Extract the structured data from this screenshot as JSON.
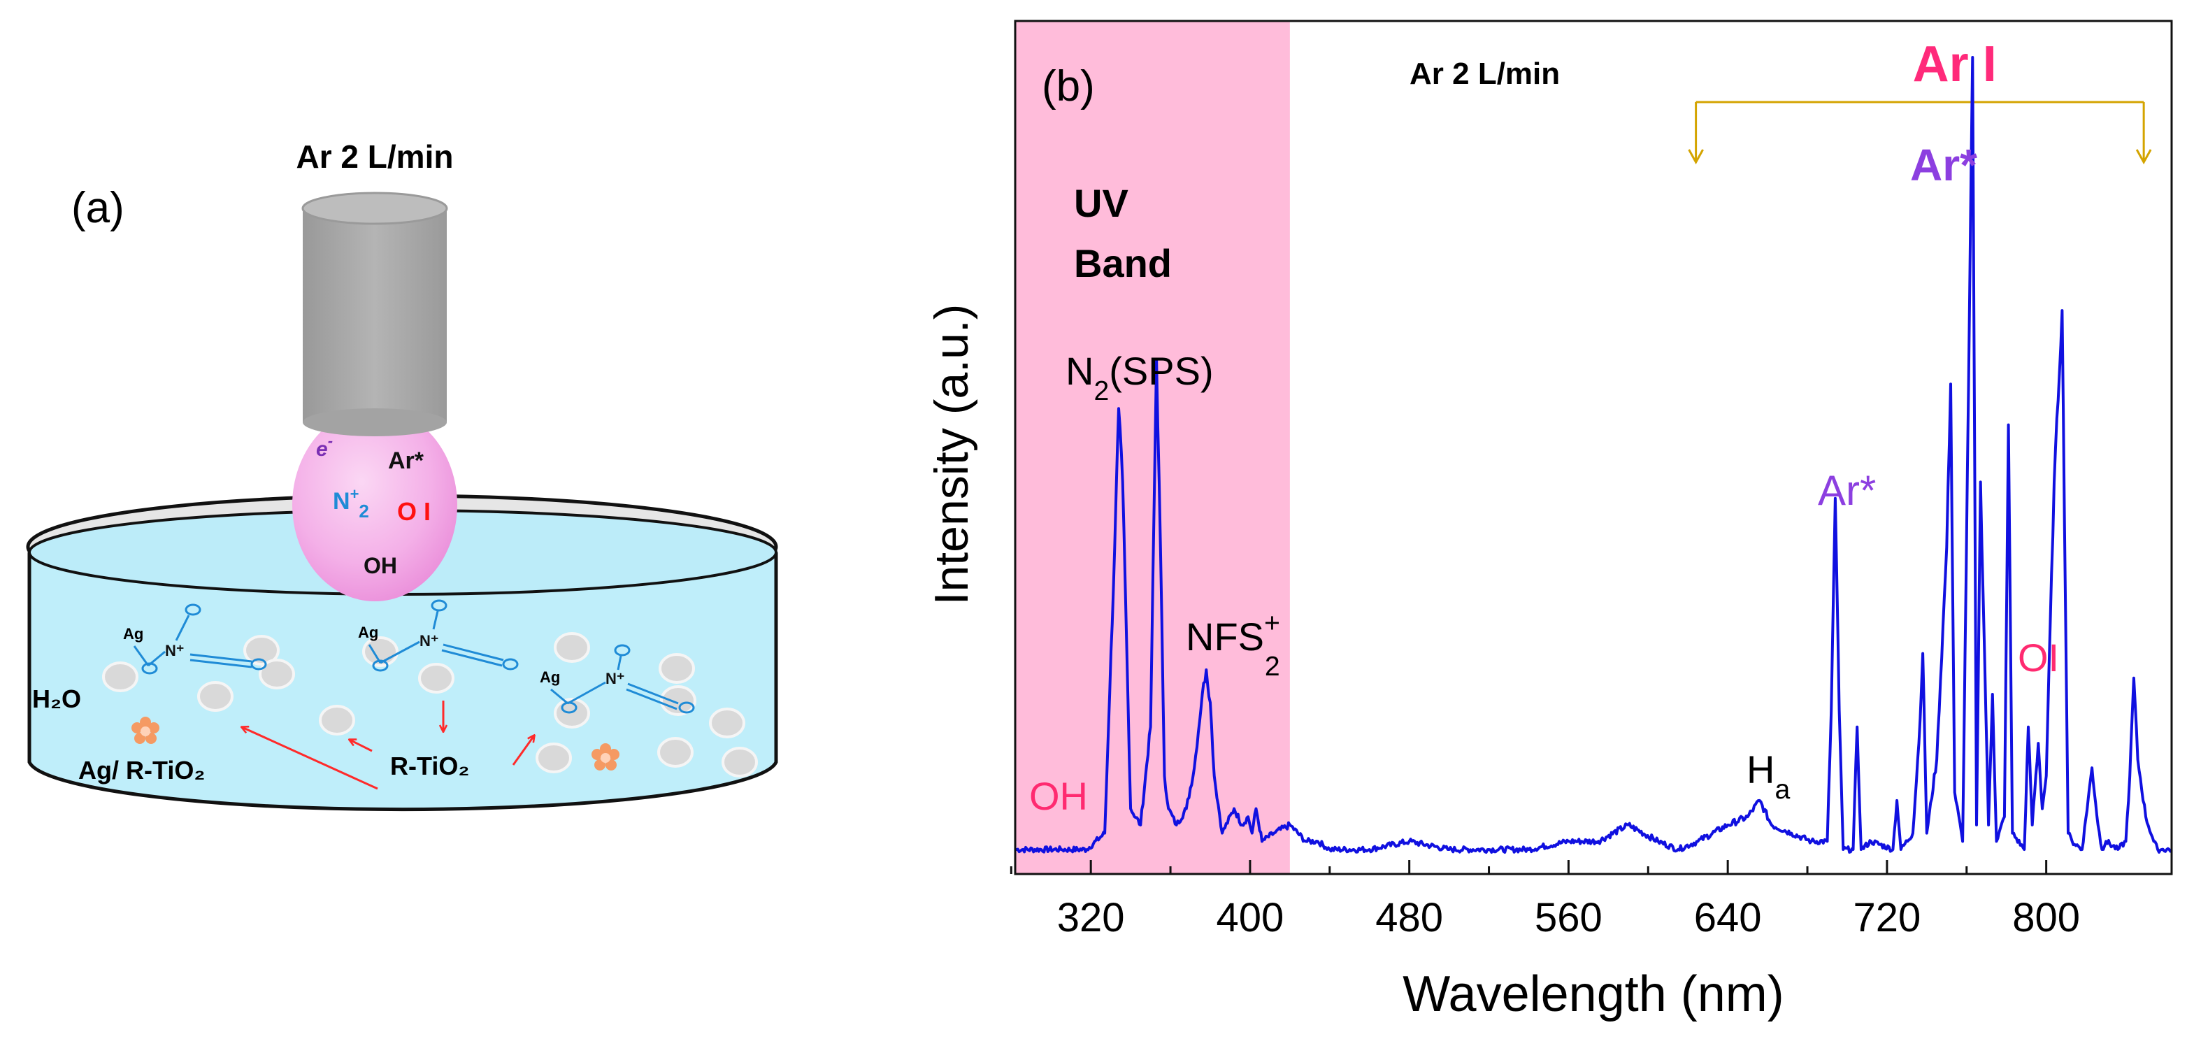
{
  "panel_a": {
    "label": "(a)",
    "gas_flow": "Ar 2 L/min",
    "species": {
      "electron_base": "e",
      "electron_sup": "-",
      "ar_star": "Ar*",
      "n2_base": "N",
      "n2_sup": "+",
      "n2_sub": "2",
      "oi": "O I",
      "oh": "OH"
    },
    "water": "H₂O",
    "ag_rtio2": "Ag/ R-TiO₂",
    "rtio2": "R-TiO₂",
    "ag_atom": "Ag",
    "n_plus": "N⁺",
    "o_atom": "o",
    "colors": {
      "nozzle": "#a6a6a6",
      "plume": "#f2a8e6",
      "liquid": "#bfeefa",
      "arrow": "#ff2a2a",
      "molecule": "#1f8bd6",
      "particle": "#d8d8d8",
      "ag_cluster": "#f59a63"
    }
  },
  "chart_data": {
    "type": "line",
    "panel_label": "(b)",
    "title": "Ar 2 L/min",
    "xlabel": "Wavelength (nm)",
    "ylabel": "Intensity (a.u.)",
    "xlim": [
      282,
      863
    ],
    "ylim": [
      0,
      100
    ],
    "xticks": [
      320,
      400,
      480,
      560,
      640,
      720,
      800
    ],
    "grid": false,
    "series": [
      {
        "name": "emission spectrum",
        "color": "#1010e0",
        "x": [
          282,
          305,
          318,
          327,
          332,
          334,
          336,
          340,
          345,
          350,
          353,
          355,
          357,
          359,
          363,
          368,
          372,
          376,
          378,
          380,
          382,
          386,
          392,
          396,
          399,
          401,
          403,
          406,
          412,
          420,
          428,
          434,
          440,
          460,
          480,
          500,
          520,
          540,
          560,
          575,
          590,
          605,
          615,
          625,
          640,
          650,
          656,
          662,
          672,
          682,
          690,
          692,
          694,
          696,
          698,
          703,
          705,
          707,
          712,
          723,
          725,
          727,
          733,
          736,
          738,
          740,
          745,
          750,
          752,
          754,
          758,
          761,
          763,
          765,
          767,
          771,
          773,
          775,
          779,
          781,
          783,
          789,
          791,
          793,
          796,
          798,
          800,
          804,
          808,
          811,
          813,
          818,
          823,
          826,
          828,
          830,
          836,
          840,
          842,
          844,
          846,
          850,
          854,
          856,
          858,
          863
        ],
        "y": [
          3,
          3,
          3,
          5,
          40,
          57,
          48,
          8,
          6,
          18,
          63,
          40,
          12,
          8,
          6,
          8,
          13,
          22,
          25,
          21,
          12,
          5,
          8,
          6,
          7,
          5,
          8,
          4,
          5,
          6,
          4,
          4,
          3,
          3,
          4,
          3,
          3,
          3,
          4,
          4,
          6,
          4,
          3,
          4,
          6,
          7,
          9,
          6,
          5,
          4,
          4,
          20,
          46,
          20,
          3,
          3,
          18,
          3,
          4,
          3,
          9,
          3,
          5,
          16,
          27,
          5,
          14,
          40,
          60,
          10,
          4,
          60,
          100,
          6,
          48,
          6,
          22,
          4,
          7,
          55,
          5,
          3,
          18,
          6,
          16,
          8,
          12,
          48,
          69,
          5,
          4,
          3,
          13,
          6,
          3,
          4,
          3,
          4,
          12,
          24,
          14,
          7,
          4,
          3,
          3,
          3
        ]
      }
    ],
    "bands": [
      {
        "label_line1": "UV",
        "label_line2": "Band",
        "range": [
          282,
          420
        ],
        "color": "#ffbcda"
      }
    ],
    "annotations": [
      {
        "label": "OH",
        "x": 289,
        "y": 7,
        "color": "#ff2a70"
      },
      {
        "label_base": "N",
        "label_sub": "2",
        "label_suffix": "(SPS)",
        "x": 300,
        "y": 68,
        "color": "#000000"
      },
      {
        "label_base": "NFS",
        "label_sup": "+",
        "label_sub": "2",
        "x": 378,
        "y": 30,
        "color": "#000000"
      },
      {
        "label_base": "H",
        "label_sub": "a",
        "x": 641,
        "y": 10,
        "color": "#000000"
      },
      {
        "label": "Ar*",
        "x": 676,
        "y": 47,
        "color": "#8c3fe0"
      },
      {
        "label": "Ar*",
        "x": 742,
        "y": 95,
        "color": "#8c3fe0"
      },
      {
        "label": "OI",
        "x": 778,
        "y": 28,
        "color": "#ff2a70"
      },
      {
        "label": "Ar I",
        "x": 754,
        "y": 111,
        "color": "#ff2a7a"
      }
    ],
    "ar_i_bracket": {
      "x_start": 624,
      "x_end": 849
    }
  }
}
